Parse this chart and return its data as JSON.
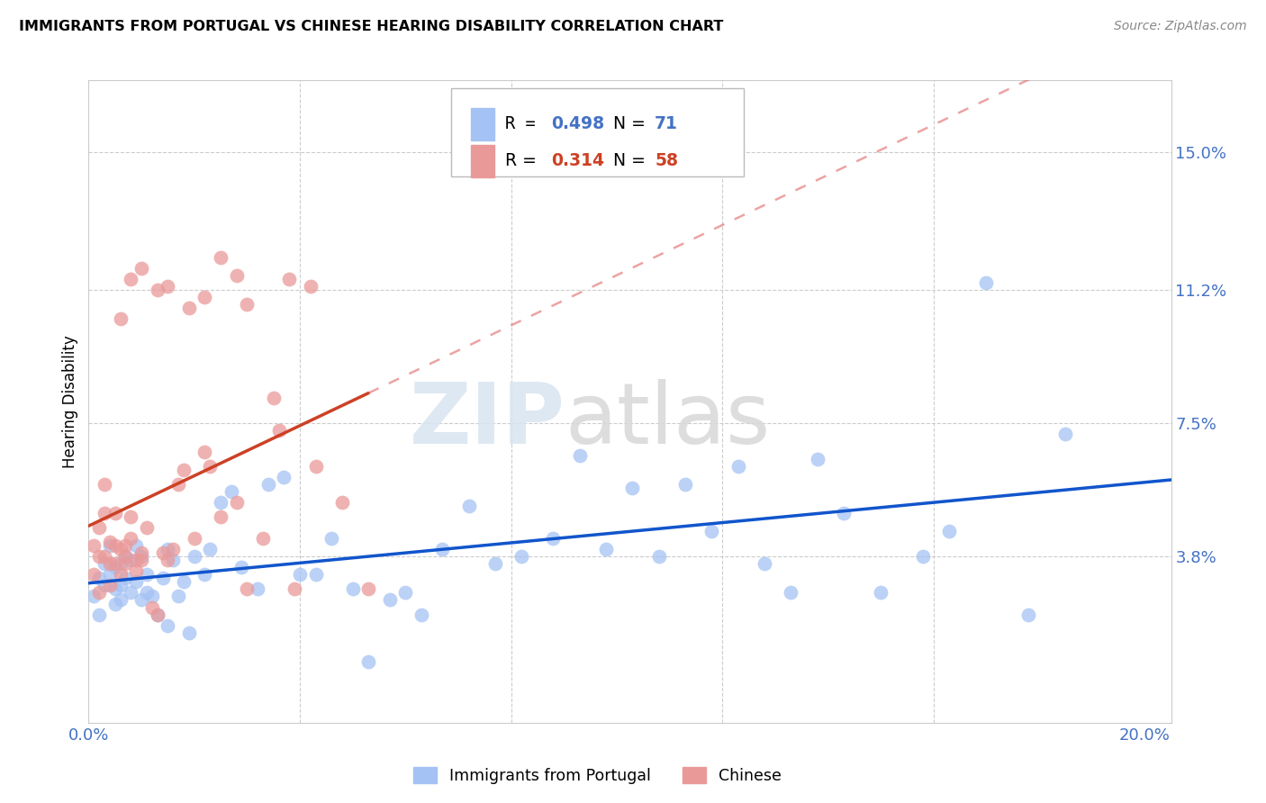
{
  "title": "IMMIGRANTS FROM PORTUGAL VS CHINESE HEARING DISABILITY CORRELATION CHART",
  "source": "Source: ZipAtlas.com",
  "ylabel": "Hearing Disability",
  "xlim": [
    0.0,
    0.205
  ],
  "ylim": [
    -0.008,
    0.17
  ],
  "xtick_positions": [
    0.0,
    0.04,
    0.08,
    0.12,
    0.16,
    0.2
  ],
  "xticklabels_show": [
    "0.0%",
    "",
    "",
    "",
    "",
    "20.0%"
  ],
  "ytick_positions": [
    0.038,
    0.075,
    0.112,
    0.15
  ],
  "yticklabels": [
    "3.8%",
    "7.5%",
    "11.2%",
    "15.0%"
  ],
  "r_portugal": 0.498,
  "n_portugal": 71,
  "r_chinese": 0.314,
  "n_chinese": 58,
  "color_portugal": "#a4c2f4",
  "color_chinese": "#ea9999",
  "line_color_portugal": "#1155cc",
  "line_color_chinese_solid": "#cc4125",
  "line_color_chinese_dash": "#e06666",
  "legend_label_portugal": "Immigrants from Portugal",
  "legend_label_chinese": "Chinese",
  "watermark_zip": "ZIP",
  "watermark_atlas": "atlas",
  "background_color": "#ffffff",
  "grid_color": "#cccccc",
  "r_color_portugal": "#4472c4",
  "r_color_chinese": "#cc4125",
  "portugal_x": [
    0.001,
    0.002,
    0.002,
    0.003,
    0.003,
    0.004,
    0.004,
    0.005,
    0.005,
    0.005,
    0.006,
    0.006,
    0.006,
    0.007,
    0.007,
    0.008,
    0.008,
    0.009,
    0.009,
    0.01,
    0.01,
    0.011,
    0.011,
    0.012,
    0.013,
    0.014,
    0.015,
    0.015,
    0.016,
    0.017,
    0.018,
    0.019,
    0.02,
    0.022,
    0.023,
    0.025,
    0.027,
    0.029,
    0.032,
    0.034,
    0.037,
    0.04,
    0.043,
    0.046,
    0.05,
    0.053,
    0.057,
    0.06,
    0.063,
    0.067,
    0.072,
    0.077,
    0.082,
    0.088,
    0.093,
    0.098,
    0.103,
    0.108,
    0.113,
    0.118,
    0.123,
    0.128,
    0.133,
    0.138,
    0.143,
    0.15,
    0.158,
    0.163,
    0.17,
    0.178,
    0.185
  ],
  "portugal_y": [
    0.027,
    0.022,
    0.032,
    0.03,
    0.036,
    0.033,
    0.041,
    0.035,
    0.029,
    0.025,
    0.036,
    0.03,
    0.026,
    0.038,
    0.032,
    0.037,
    0.028,
    0.041,
    0.031,
    0.038,
    0.026,
    0.033,
    0.028,
    0.027,
    0.022,
    0.032,
    0.019,
    0.04,
    0.037,
    0.027,
    0.031,
    0.017,
    0.038,
    0.033,
    0.04,
    0.053,
    0.056,
    0.035,
    0.029,
    0.058,
    0.06,
    0.033,
    0.033,
    0.043,
    0.029,
    0.009,
    0.026,
    0.028,
    0.022,
    0.04,
    0.052,
    0.036,
    0.038,
    0.043,
    0.066,
    0.04,
    0.057,
    0.038,
    0.058,
    0.045,
    0.063,
    0.036,
    0.028,
    0.065,
    0.05,
    0.028,
    0.038,
    0.045,
    0.114,
    0.022,
    0.072
  ],
  "chinese_x": [
    0.001,
    0.001,
    0.002,
    0.002,
    0.002,
    0.003,
    0.003,
    0.003,
    0.004,
    0.004,
    0.004,
    0.005,
    0.005,
    0.005,
    0.006,
    0.006,
    0.007,
    0.007,
    0.007,
    0.008,
    0.008,
    0.009,
    0.009,
    0.01,
    0.01,
    0.011,
    0.012,
    0.013,
    0.014,
    0.015,
    0.016,
    0.017,
    0.018,
    0.02,
    0.022,
    0.023,
    0.025,
    0.028,
    0.03,
    0.033,
    0.036,
    0.039,
    0.043,
    0.048,
    0.053,
    0.013,
    0.022,
    0.03,
    0.008,
    0.019,
    0.025,
    0.015,
    0.035,
    0.042,
    0.028,
    0.006,
    0.01,
    0.038
  ],
  "chinese_y": [
    0.033,
    0.041,
    0.038,
    0.046,
    0.028,
    0.05,
    0.058,
    0.038,
    0.036,
    0.042,
    0.03,
    0.041,
    0.05,
    0.036,
    0.04,
    0.033,
    0.038,
    0.041,
    0.036,
    0.043,
    0.049,
    0.037,
    0.034,
    0.039,
    0.037,
    0.046,
    0.024,
    0.022,
    0.039,
    0.037,
    0.04,
    0.058,
    0.062,
    0.043,
    0.067,
    0.063,
    0.049,
    0.053,
    0.029,
    0.043,
    0.073,
    0.029,
    0.063,
    0.053,
    0.029,
    0.112,
    0.11,
    0.108,
    0.115,
    0.107,
    0.121,
    0.113,
    0.082,
    0.113,
    0.116,
    0.104,
    0.118,
    0.115
  ]
}
